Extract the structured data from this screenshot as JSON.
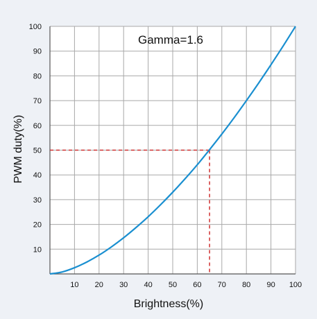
{
  "chart_data": {
    "type": "line",
    "title": "Gamma=1.6",
    "xlabel": "Brightness(%)",
    "ylabel": "PWM duty(%)",
    "xlim": [
      0,
      100
    ],
    "ylim": [
      0,
      100
    ],
    "x_ticks": [
      10,
      20,
      30,
      40,
      50,
      60,
      70,
      80,
      90,
      100
    ],
    "y_ticks": [
      10,
      20,
      30,
      40,
      50,
      60,
      70,
      80,
      90,
      100
    ],
    "grid": true,
    "gamma": 1.6,
    "series": [
      {
        "x": [
          0,
          5,
          10,
          15,
          20,
          25,
          30,
          35,
          40,
          45,
          50,
          55,
          60,
          65,
          70,
          75,
          80,
          85,
          90,
          95,
          100
        ],
        "y": [
          0,
          0.8,
          2.5,
          4.8,
          7.6,
          10.9,
          14.6,
          18.7,
          23.1,
          27.9,
          33.0,
          38.4,
          44.1,
          50.2,
          56.5,
          63.1,
          70.0,
          77.1,
          84.5,
          92.1,
          100
        ],
        "color": "#1a8fd0"
      }
    ],
    "reference_point": {
      "x": 65,
      "y": 50,
      "color": "#d03030",
      "style": "dashed"
    }
  }
}
